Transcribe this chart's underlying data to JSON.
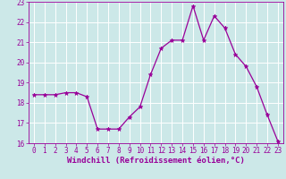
{
  "x": [
    0,
    1,
    2,
    3,
    4,
    5,
    6,
    7,
    8,
    9,
    10,
    11,
    12,
    13,
    14,
    15,
    16,
    17,
    18,
    19,
    20,
    21,
    22,
    23
  ],
  "y": [
    18.4,
    18.4,
    18.4,
    18.5,
    18.5,
    18.3,
    16.7,
    16.7,
    16.7,
    17.3,
    17.8,
    19.4,
    20.7,
    21.1,
    21.1,
    22.8,
    21.1,
    22.3,
    21.7,
    20.4,
    19.8,
    18.8,
    17.4,
    16.1
  ],
  "line_color": "#990099",
  "marker": "*",
  "marker_size": 3.5,
  "bg_color": "#cce8e8",
  "grid_color": "#ffffff",
  "xlabel": "Windchill (Refroidissement éolien,°C)",
  "xlabel_color": "#990099",
  "tick_color": "#990099",
  "ylim": [
    16,
    23
  ],
  "xlim_min": -0.5,
  "xlim_max": 23.5,
  "yticks": [
    16,
    17,
    18,
    19,
    20,
    21,
    22,
    23
  ],
  "xticks": [
    0,
    1,
    2,
    3,
    4,
    5,
    6,
    7,
    8,
    9,
    10,
    11,
    12,
    13,
    14,
    15,
    16,
    17,
    18,
    19,
    20,
    21,
    22,
    23
  ],
  "tick_fontsize": 5.5,
  "xlabel_fontsize": 6.5,
  "linewidth": 0.9
}
